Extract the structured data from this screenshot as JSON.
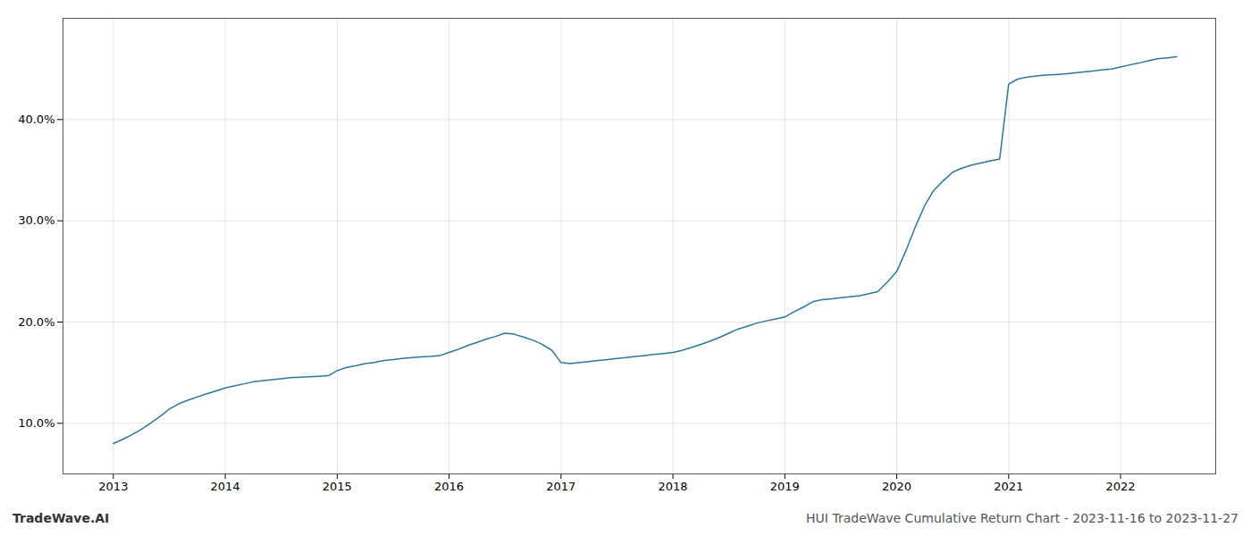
{
  "chart_data": {
    "type": "line",
    "x": [
      2013.0,
      2013.08,
      2013.17,
      2013.25,
      2013.33,
      2013.42,
      2013.5,
      2013.58,
      2013.67,
      2013.75,
      2013.83,
      2013.92,
      2014.0,
      2014.08,
      2014.17,
      2014.25,
      2014.33,
      2014.42,
      2014.5,
      2014.58,
      2014.67,
      2014.75,
      2014.83,
      2014.92,
      2015.0,
      2015.08,
      2015.17,
      2015.25,
      2015.33,
      2015.42,
      2015.5,
      2015.58,
      2015.67,
      2015.75,
      2015.83,
      2015.92,
      2016.0,
      2016.08,
      2016.17,
      2016.25,
      2016.33,
      2016.42,
      2016.5,
      2016.58,
      2016.67,
      2016.75,
      2016.83,
      2016.92,
      2017.0,
      2017.08,
      2017.17,
      2017.25,
      2017.33,
      2017.42,
      2017.5,
      2017.58,
      2017.67,
      2017.75,
      2017.83,
      2017.92,
      2018.0,
      2018.08,
      2018.17,
      2018.25,
      2018.33,
      2018.42,
      2018.5,
      2018.58,
      2018.67,
      2018.75,
      2018.83,
      2018.92,
      2019.0,
      2019.08,
      2019.17,
      2019.25,
      2019.33,
      2019.42,
      2019.5,
      2019.58,
      2019.67,
      2019.75,
      2019.83,
      2019.92,
      2020.0,
      2020.08,
      2020.17,
      2020.25,
      2020.33,
      2020.42,
      2020.5,
      2020.58,
      2020.67,
      2020.75,
      2020.83,
      2020.92,
      2021.0,
      2021.08,
      2021.17,
      2021.25,
      2021.33,
      2021.42,
      2021.5,
      2021.58,
      2021.67,
      2021.75,
      2021.83,
      2021.92,
      2022.0,
      2022.08,
      2022.17,
      2022.25,
      2022.33,
      2022.42,
      2022.5
    ],
    "values": [
      8.0,
      8.4,
      8.9,
      9.4,
      10.0,
      10.7,
      11.4,
      11.9,
      12.3,
      12.6,
      12.9,
      13.2,
      13.5,
      13.7,
      13.9,
      14.1,
      14.2,
      14.3,
      14.4,
      14.5,
      14.55,
      14.6,
      14.65,
      14.7,
      15.2,
      15.5,
      15.7,
      15.9,
      16.0,
      16.2,
      16.3,
      16.4,
      16.5,
      16.55,
      16.6,
      16.7,
      17.0,
      17.3,
      17.7,
      18.0,
      18.3,
      18.6,
      18.9,
      18.8,
      18.5,
      18.2,
      17.8,
      17.2,
      16.0,
      15.9,
      16.0,
      16.1,
      16.2,
      16.3,
      16.4,
      16.5,
      16.6,
      16.7,
      16.8,
      16.9,
      17.0,
      17.2,
      17.5,
      17.8,
      18.1,
      18.5,
      18.9,
      19.3,
      19.6,
      19.9,
      20.1,
      20.3,
      20.5,
      21.0,
      21.5,
      22.0,
      22.2,
      22.3,
      22.4,
      22.5,
      22.6,
      22.8,
      23.0,
      24.0,
      25.0,
      27.0,
      29.5,
      31.5,
      33.0,
      34.0,
      34.8,
      35.2,
      35.5,
      35.7,
      35.9,
      36.1,
      43.5,
      44.0,
      44.2,
      44.3,
      44.4,
      44.45,
      44.5,
      44.6,
      44.7,
      44.8,
      44.9,
      45.0,
      45.2,
      45.4,
      45.6,
      45.8,
      46.0,
      46.1,
      46.2
    ],
    "color": "#2878a0",
    "xlim": [
      2012.55,
      2022.85
    ],
    "xticks": [
      2013,
      2014,
      2015,
      2016,
      2017,
      2018,
      2019,
      2020,
      2021,
      2022
    ],
    "ylim": [
      5,
      50
    ],
    "yticks": [
      {
        "value": 10,
        "label": "10.0%"
      },
      {
        "value": 20,
        "label": "20.0%"
      },
      {
        "value": 30,
        "label": "30.0%"
      },
      {
        "value": 40,
        "label": "40.0%"
      }
    ],
    "grid": true,
    "annotations": [
      "TradeWave.AI",
      "HUI TradeWave Cumulative Return Chart - 2023-11-16 to 2023-11-27"
    ]
  }
}
